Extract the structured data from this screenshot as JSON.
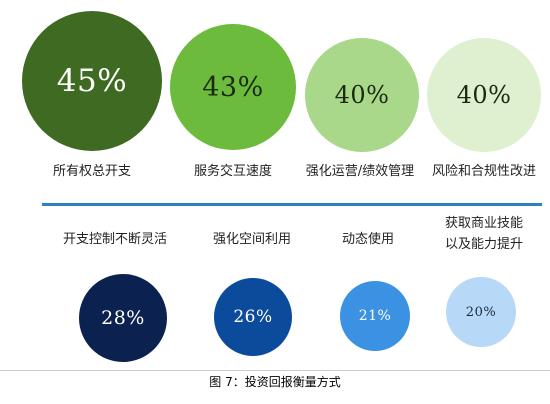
{
  "caption": "图 7：投资回报衡量方式",
  "top_row": [
    {
      "label": "所有权总开支",
      "value_text": "45%",
      "color": "#3f6a22",
      "text_color": "#ffffff"
    },
    {
      "label": "服务交互速度",
      "value_text": "43%",
      "color": "#6cbb3c",
      "text_color": "#1b2a10"
    },
    {
      "label": "强化运营/绩效管理",
      "value_text": "40%",
      "color": "#a9d88a",
      "text_color": "#1b2a10"
    },
    {
      "label": "风险和合规性改进",
      "value_text": "40%",
      "color": "#def0cf",
      "text_color": "#1b2a10"
    }
  ],
  "bottom_row": [
    {
      "label": "开支控制不断灵活",
      "value_text": "28%",
      "color": "#0b2150",
      "text_color": "#ffffff"
    },
    {
      "label": "强化空间利用",
      "value_text": "26%",
      "color": "#0c4a9c",
      "text_color": "#ffffff"
    },
    {
      "label": "动态使用",
      "value_text": "21%",
      "color": "#3b92e3",
      "text_color": "#ffffff"
    },
    {
      "label_lines": [
        "获取商业技能",
        "以及能力提升"
      ],
      "value_text": "20%",
      "color": "#b7d8f6",
      "text_color": "#1b2a40"
    }
  ],
  "chart_data": {
    "type": "bubble",
    "title": "",
    "groups": [
      {
        "categories": [
          "所有权总开支",
          "服务交互速度",
          "强化运营/绩效管理",
          "风险和合规性改进"
        ],
        "values": [
          45,
          43,
          40,
          40
        ],
        "colors": [
          "#3f6a22",
          "#6cbb3c",
          "#a9d88a",
          "#def0cf"
        ]
      },
      {
        "categories": [
          "开支控制不断灵活",
          "强化空间利用",
          "动态使用",
          "获取商业技能以及能力提升"
        ],
        "values": [
          28,
          26,
          21,
          20
        ],
        "colors": [
          "#0b2150",
          "#0c4a9c",
          "#3b92e3",
          "#b7d8f6"
        ]
      }
    ]
  }
}
